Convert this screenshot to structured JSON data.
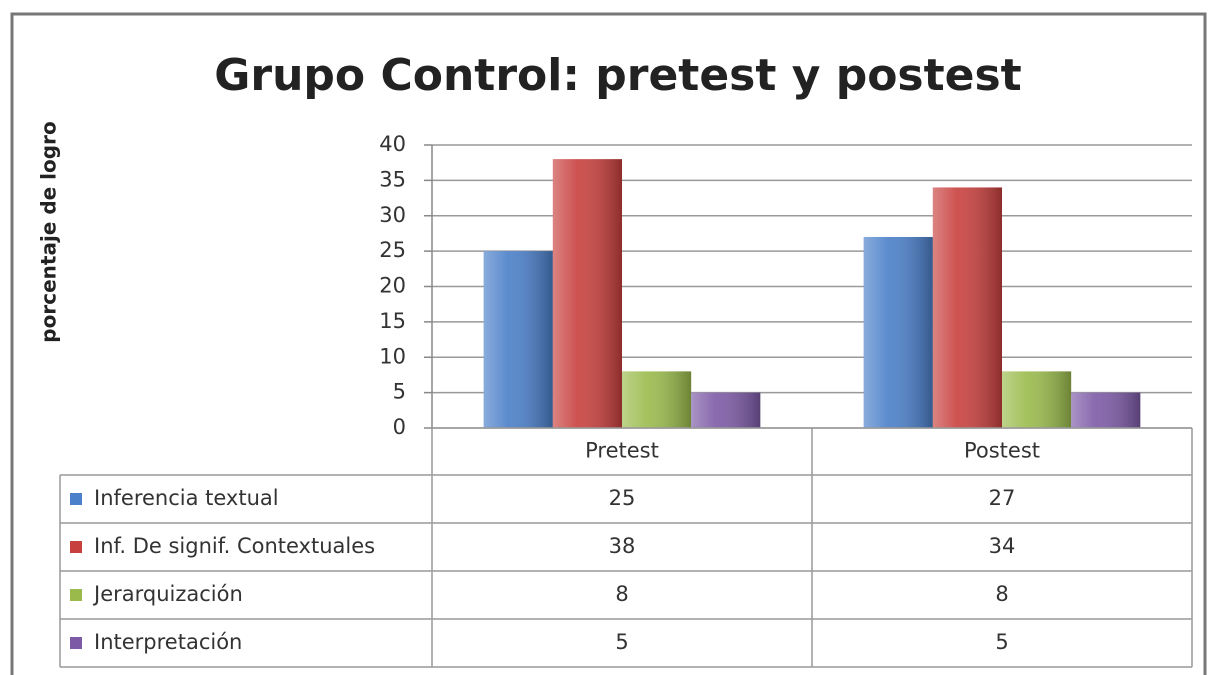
{
  "chart_data": {
    "type": "bar",
    "title": "Grupo Control: pretest  y postest",
    "y_label": "porcentaje de logro",
    "categories": [
      "Pretest",
      "Postest"
    ],
    "series": [
      {
        "name": "Inferencia textual",
        "color": "#4a7fc9",
        "values": [
          25,
          27
        ]
      },
      {
        "name": "Inf. De signif. Contextuales",
        "color": "#c8403d",
        "values": [
          38,
          34
        ]
      },
      {
        "name": "Jerarquización",
        "color": "#9abb4c",
        "values": [
          8,
          8
        ]
      },
      {
        "name": "Interpretación",
        "color": "#7c5aa6",
        "values": [
          5,
          5
        ]
      }
    ],
    "ylim": [
      0,
      40
    ],
    "yticks": [
      0,
      5,
      10,
      15,
      20,
      25,
      30,
      35,
      40
    ],
    "grid": true,
    "data_table": true
  }
}
